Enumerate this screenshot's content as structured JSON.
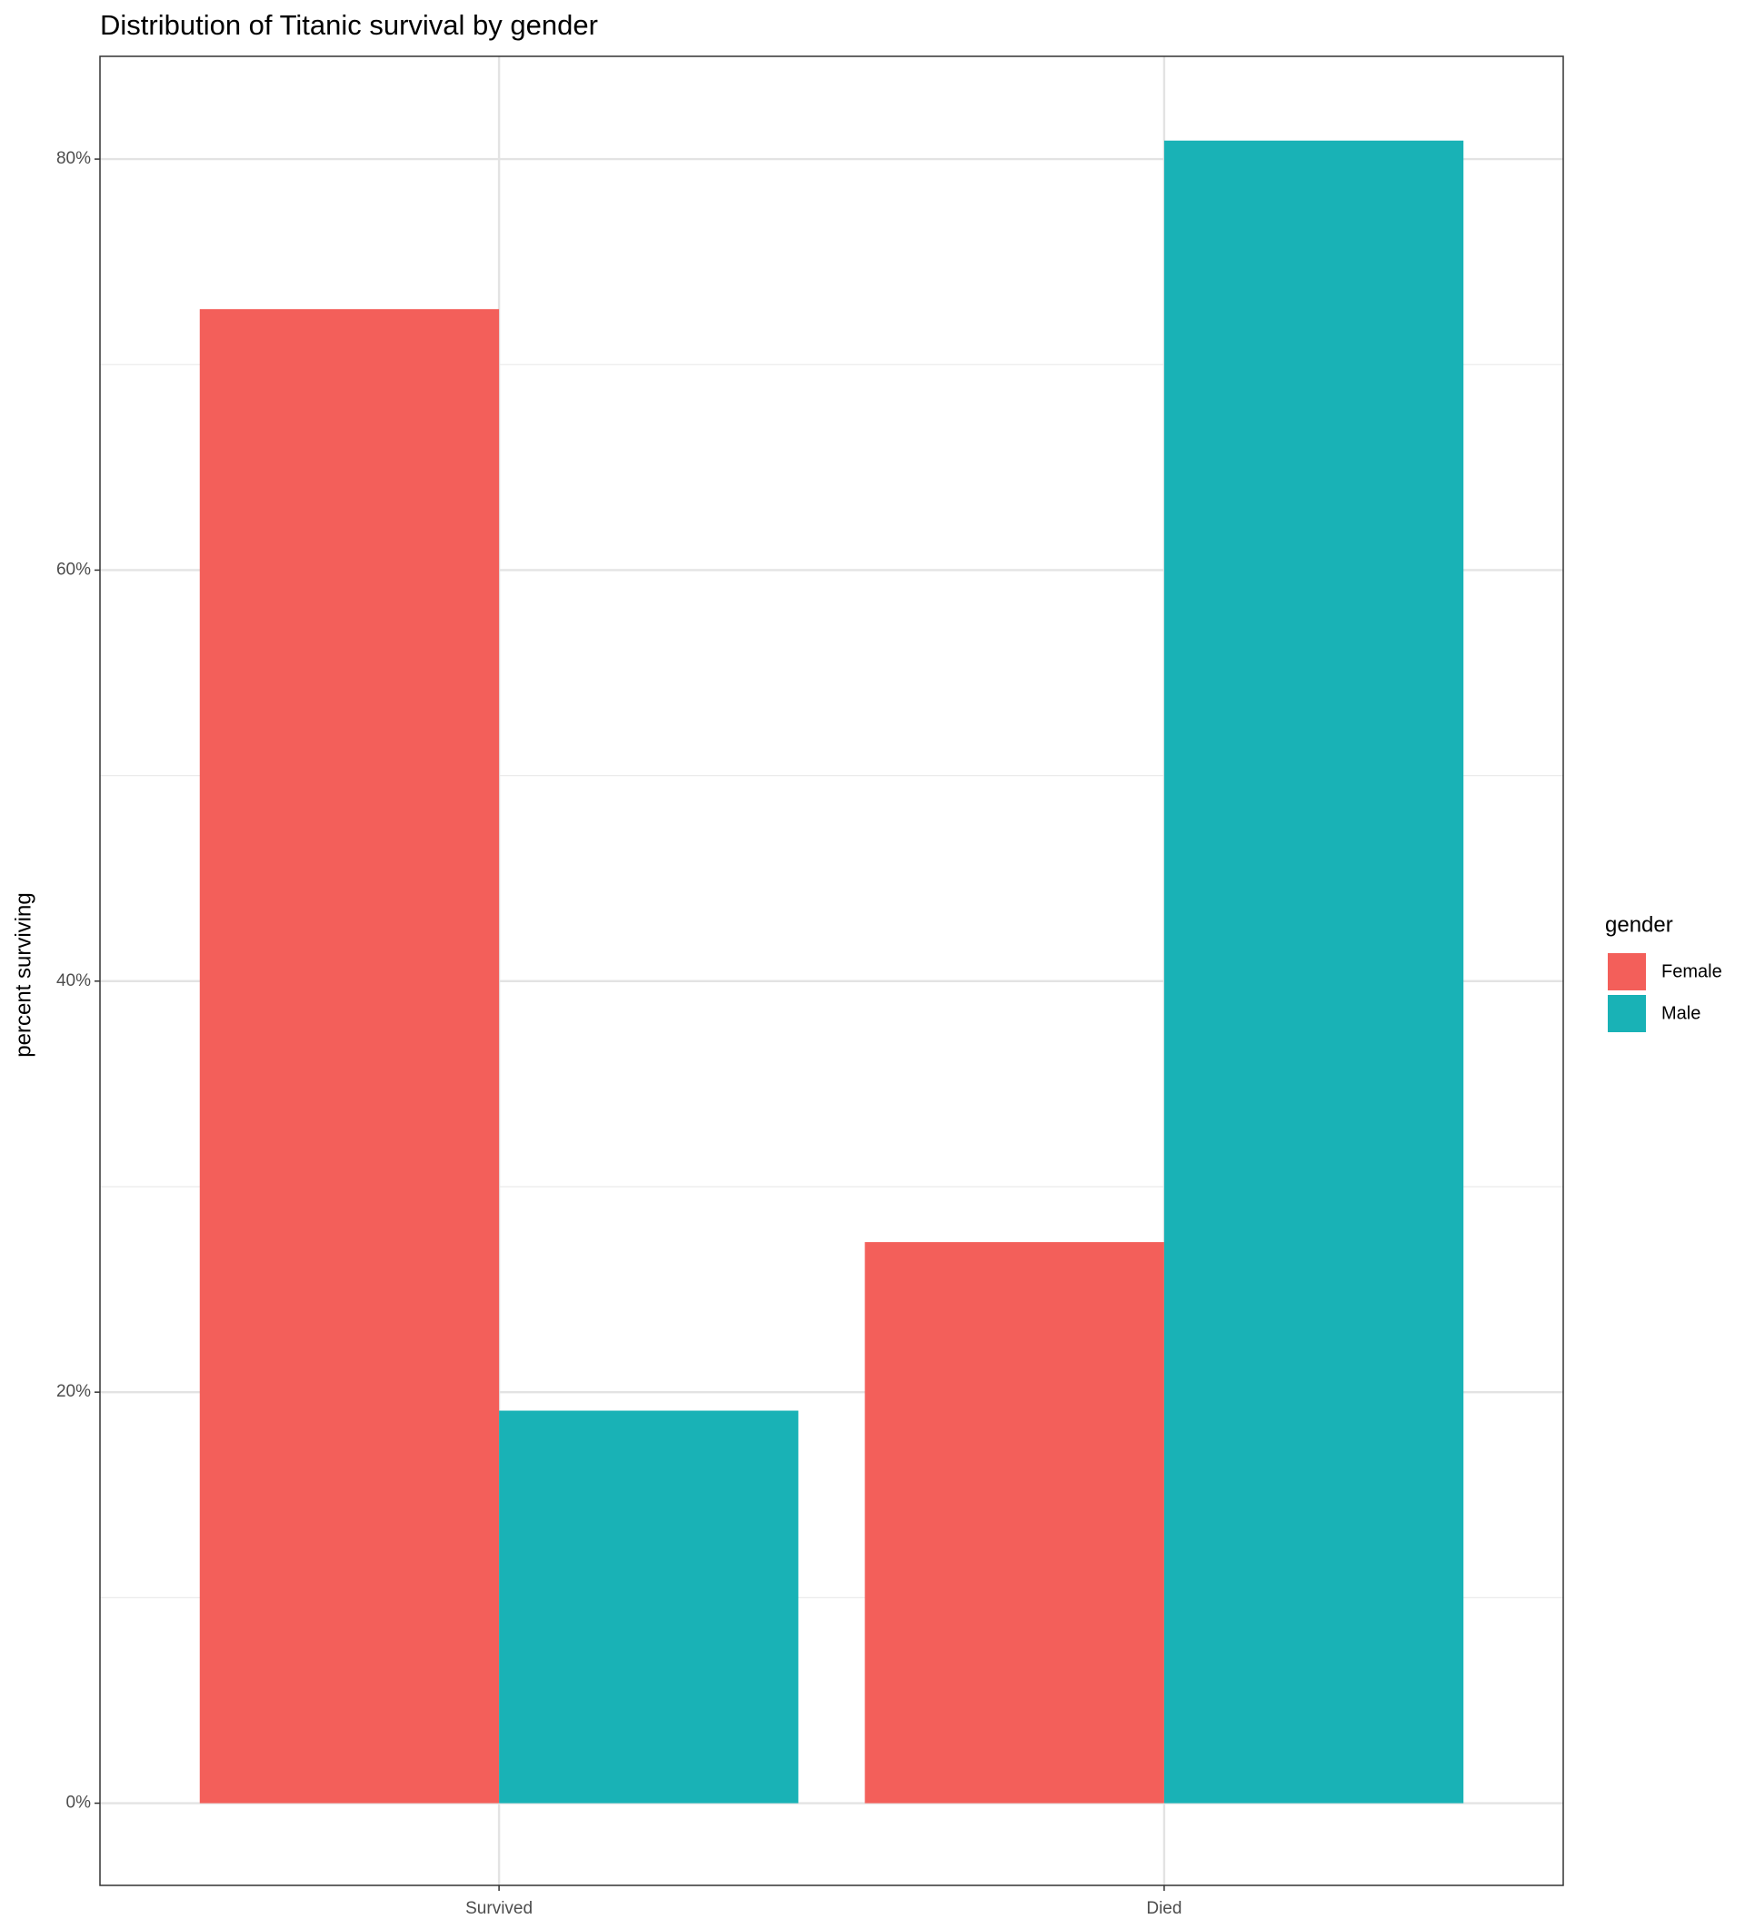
{
  "chart_data": {
    "type": "bar",
    "title": "Distribution of Titanic survival by gender",
    "y_label": "percent surviving",
    "categories": [
      "Survived",
      "Died"
    ],
    "legend_title": "gender",
    "series": [
      {
        "name": "Female",
        "color": "#f35f5a",
        "values": [
          72.7,
          27.3
        ]
      },
      {
        "name": "Male",
        "color": "#19b2b6",
        "values": [
          19.1,
          80.9
        ]
      }
    ],
    "ylim": [
      -4.0,
      85.0
    ],
    "yticks": [
      {
        "value": 0,
        "label": "0%"
      },
      {
        "value": 20,
        "label": "20%"
      },
      {
        "value": 40,
        "label": "40%"
      },
      {
        "value": 60,
        "label": "60%"
      },
      {
        "value": 80,
        "label": "80%"
      }
    ],
    "minor_yticks": [
      10,
      30,
      50,
      70
    ],
    "grid": true,
    "legend_position": "right"
  }
}
